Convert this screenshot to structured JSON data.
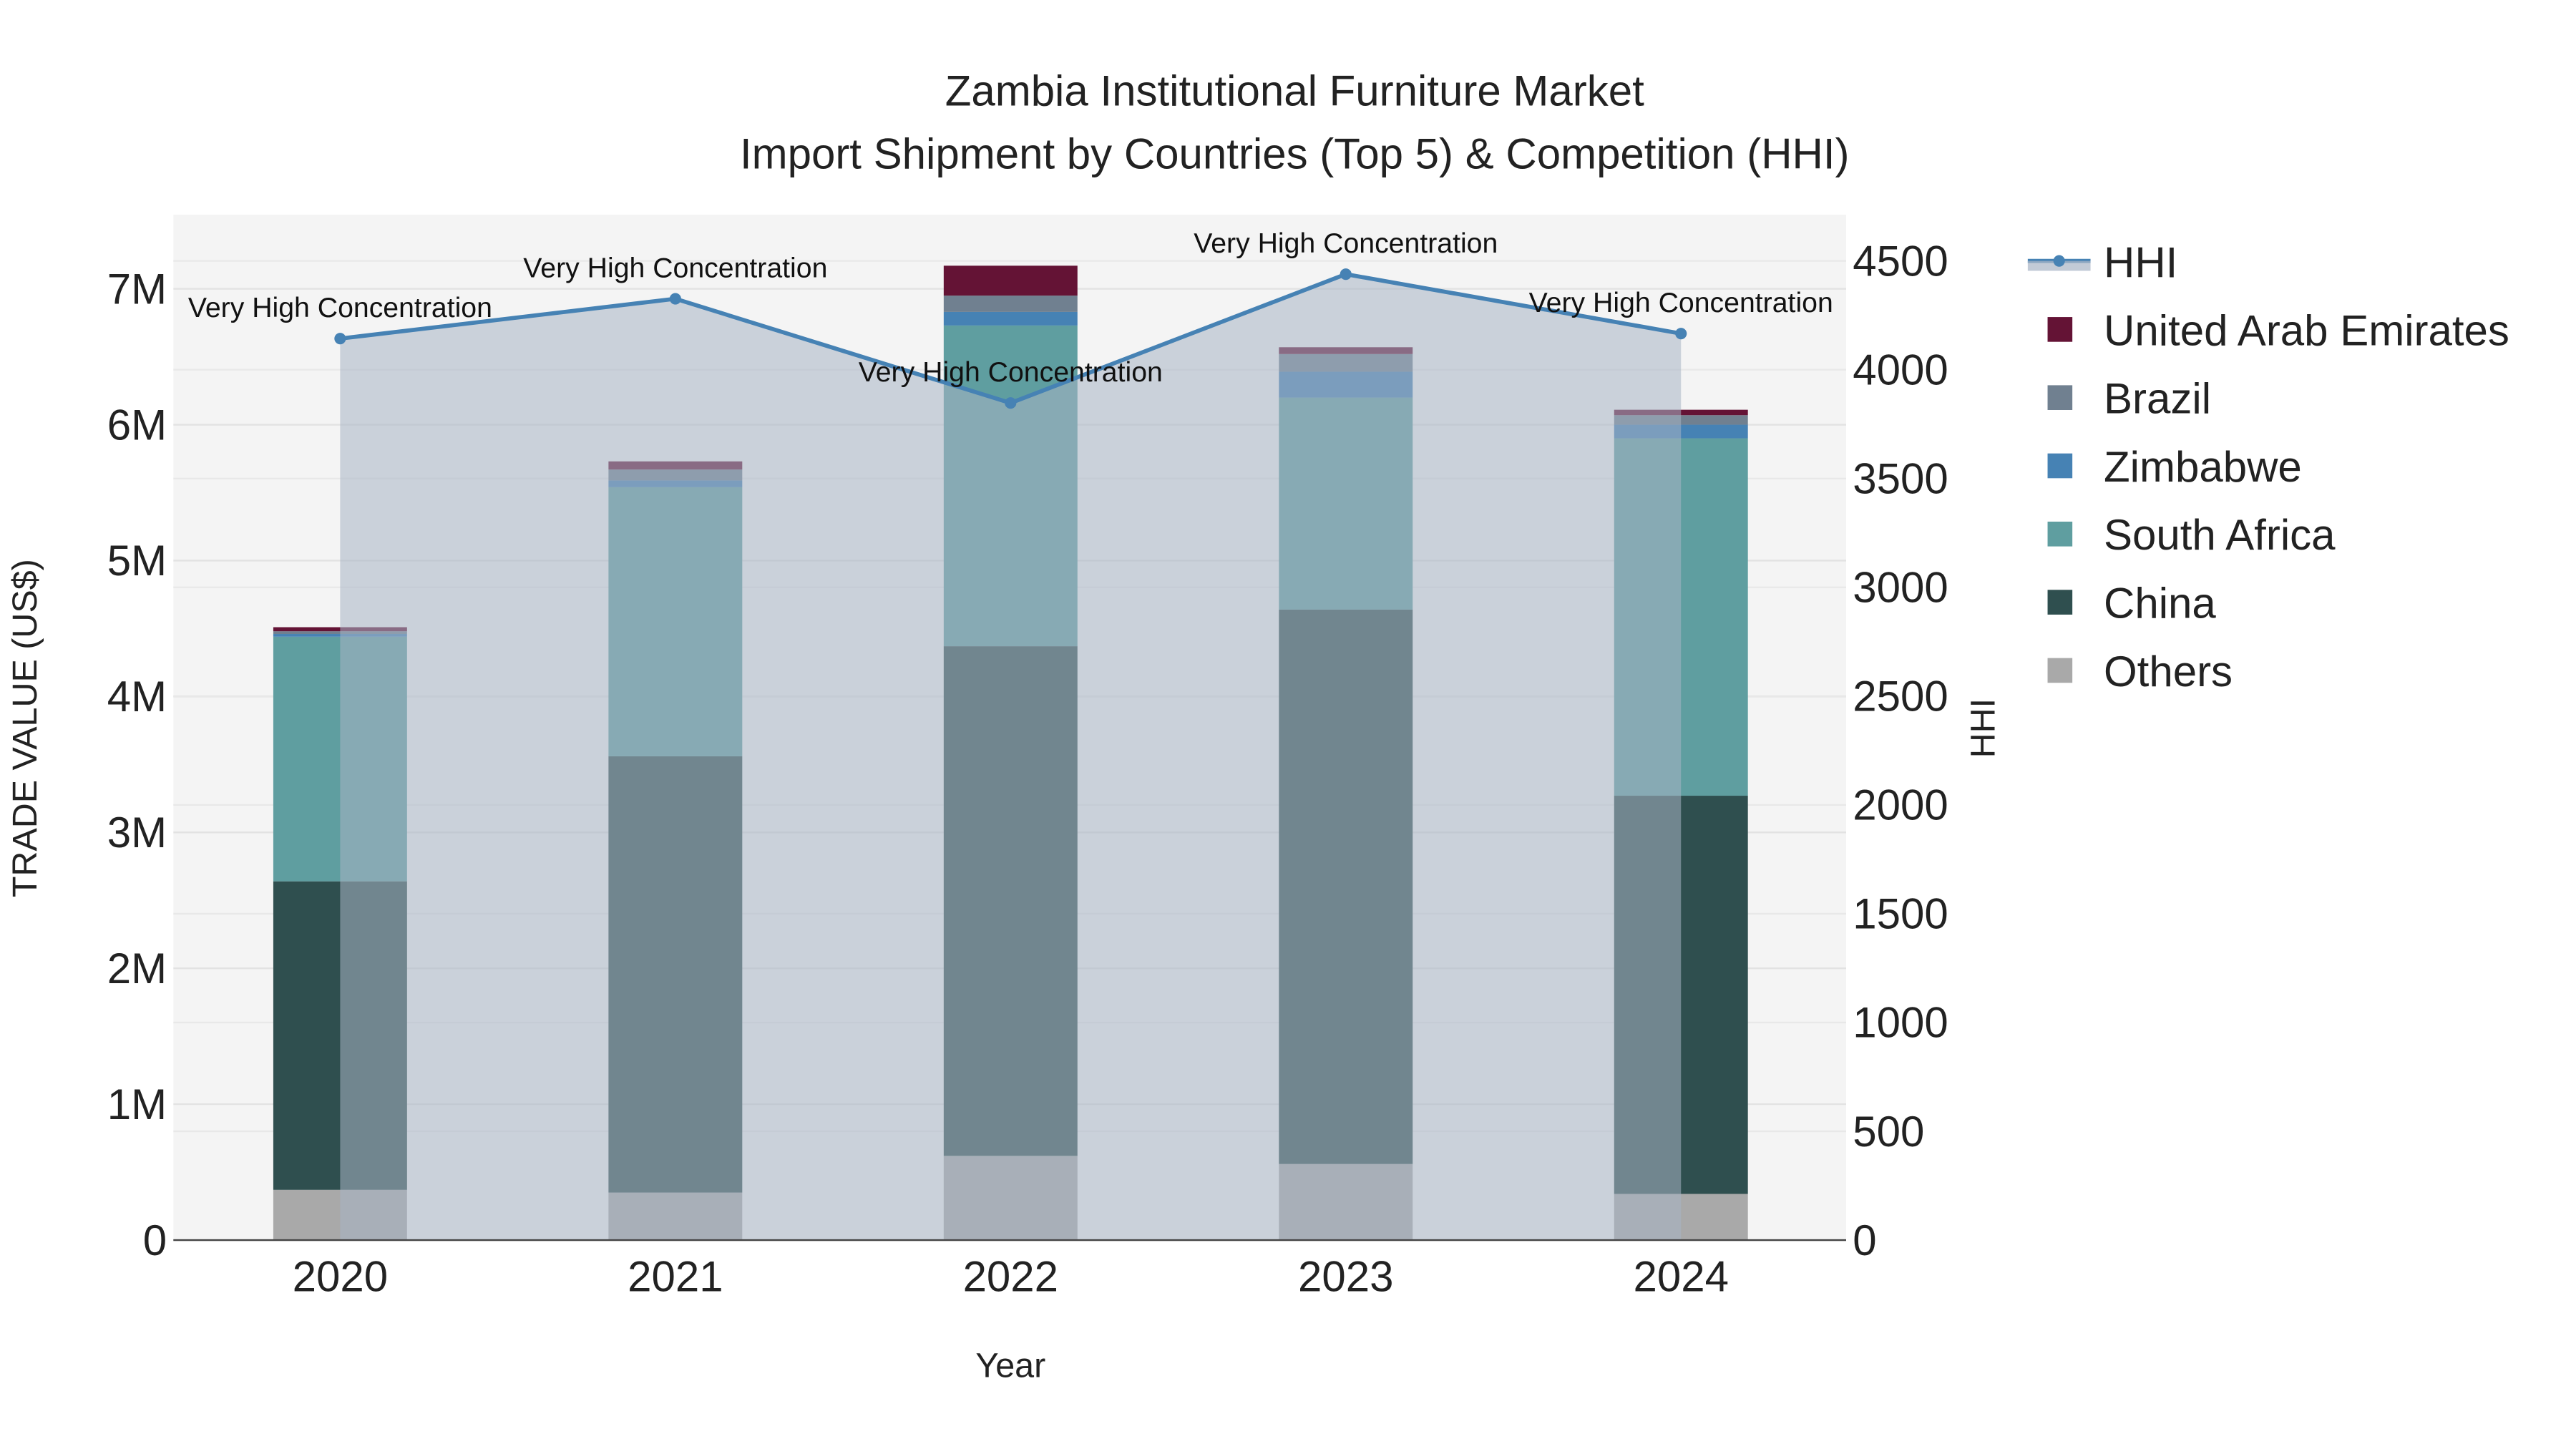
{
  "chart_data": {
    "type": "bar",
    "stacked": true,
    "title": "Zambia Institutional Furniture Market",
    "subtitle": "Import Shipment by Countries (Top 5) & Competition (HHI)",
    "xlabel": "Year",
    "ylabel": "TRADE VALUE (US$)",
    "y2label": "HHI",
    "categories": [
      "2020",
      "2021",
      "2022",
      "2023",
      "2024"
    ],
    "ylim": [
      0,
      7500000
    ],
    "y_ticks": [
      0,
      1000000,
      2000000,
      3000000,
      4000000,
      5000000,
      6000000,
      7000000
    ],
    "y_tick_labels": [
      "0",
      "1M",
      "2M",
      "3M",
      "4M",
      "5M",
      "6M",
      "7M"
    ],
    "y2lim": [
      0,
      4700
    ],
    "y2_ticks": [
      0,
      500,
      1000,
      1500,
      2000,
      2500,
      3000,
      3500,
      4000,
      4500
    ],
    "y2_tick_labels": [
      "0",
      "500",
      "1000",
      "1500",
      "2000",
      "2500",
      "3000",
      "3500",
      "4000",
      "4500"
    ],
    "series": [
      {
        "name": "Others",
        "color": "#A9A9A9",
        "values": [
          370000,
          350000,
          620000,
          560000,
          340000
        ]
      },
      {
        "name": "China",
        "color": "#2F4F4F",
        "values": [
          2270000,
          3210000,
          3750000,
          4080000,
          2930000
        ]
      },
      {
        "name": "South Africa",
        "color": "#5F9EA0",
        "values": [
          1800000,
          1980000,
          2360000,
          1560000,
          2630000
        ]
      },
      {
        "name": "Zimbabwe",
        "color": "#4682B4",
        "values": [
          20000,
          50000,
          100000,
          190000,
          100000
        ]
      },
      {
        "name": "Brazil",
        "color": "#708090",
        "values": [
          20000,
          80000,
          120000,
          130000,
          70000
        ]
      },
      {
        "name": "United Arab Emirates",
        "color": "#641335",
        "values": [
          30000,
          60000,
          220000,
          50000,
          40000
        ]
      }
    ],
    "line_series": {
      "name": "HHI",
      "color": "#4682B4",
      "axis": "right",
      "fill": "area",
      "values": [
        4143,
        4326,
        3847,
        4439,
        4166
      ],
      "annotations": [
        "Very High Concentration",
        "Very High Concentration",
        "Very High Concentration",
        "Very High Concentration",
        "Very High Concentration"
      ]
    },
    "legend": {
      "placement": "right",
      "order": [
        "HHI",
        "United Arab Emirates",
        "Brazil",
        "Zimbabwe",
        "South Africa",
        "China",
        "Others"
      ]
    },
    "grid": true
  }
}
